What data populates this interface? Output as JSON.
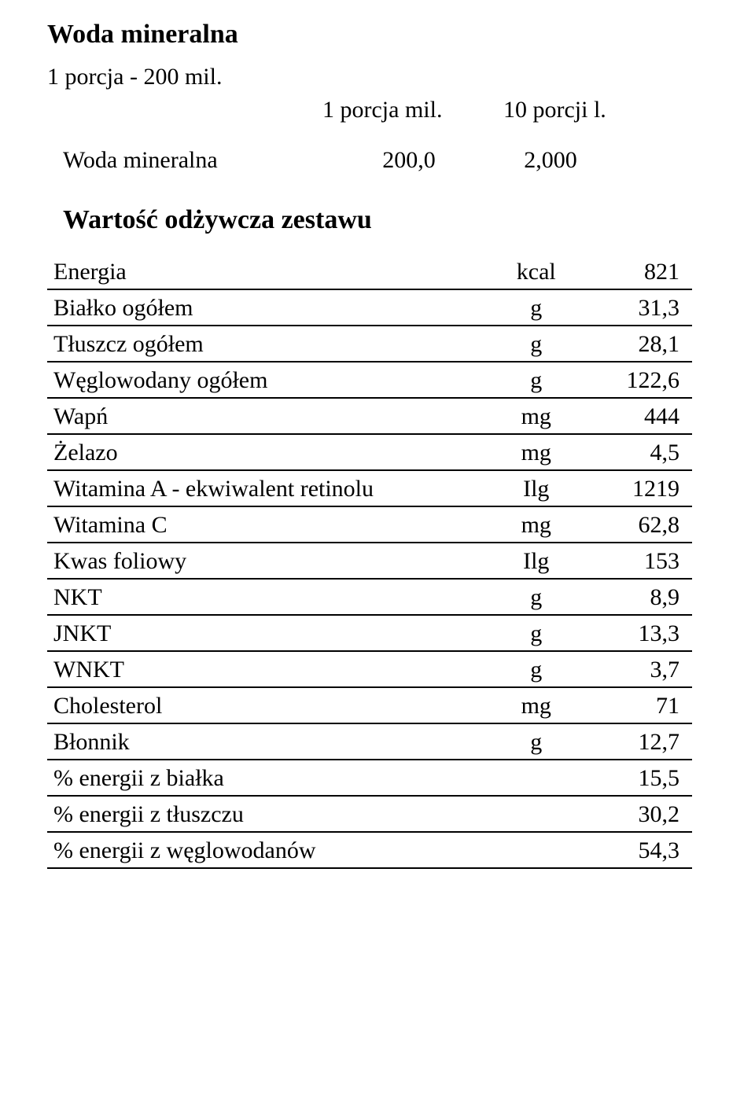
{
  "title": "Woda mineralna",
  "portion_line": "1 porcja - 200 mil.",
  "header": {
    "col1": "1 porcja mil.",
    "col2": "10 porcji l."
  },
  "ingredient": {
    "name": "Woda mineralna",
    "per_portion": "200,0",
    "per_10_portions": "2,000"
  },
  "section_title": "Wartość odżywcza zestawu",
  "rows": [
    {
      "name": "Energia",
      "unit": "kcal",
      "value": "821"
    },
    {
      "name": "Białko ogółem",
      "unit": "g",
      "value": "31,3"
    },
    {
      "name": "Tłuszcz ogółem",
      "unit": "g",
      "value": "28,1"
    },
    {
      "name": "Węglowodany ogółem",
      "unit": "g",
      "value": "122,6"
    },
    {
      "name": "Wapń",
      "unit": "mg",
      "value": "444"
    },
    {
      "name": "Żelazo",
      "unit": "mg",
      "value": "4,5"
    },
    {
      "name": "Witamina A - ekwiwalent retinolu",
      "unit": "Ilg",
      "value": "1219"
    },
    {
      "name": "Witamina C",
      "unit": "mg",
      "value": "62,8"
    },
    {
      "name": "Kwas foliowy",
      "unit": "Ilg",
      "value": "153"
    },
    {
      "name": "NKT",
      "unit": "g",
      "value": "8,9"
    },
    {
      "name": "JNKT",
      "unit": "g",
      "value": "13,3"
    },
    {
      "name": "WNKT",
      "unit": "g",
      "value": "3,7"
    },
    {
      "name": "Cholesterol",
      "unit": "mg",
      "value": "71"
    },
    {
      "name": "Błonnik",
      "unit": "g",
      "value": "12,7"
    }
  ],
  "summary_rows": [
    {
      "name": "% energii z białka",
      "value": "15,5"
    },
    {
      "name": "% energii z tłuszczu",
      "value": "30,2"
    },
    {
      "name": "% energii z węglowodanów",
      "value": "54,3"
    }
  ]
}
